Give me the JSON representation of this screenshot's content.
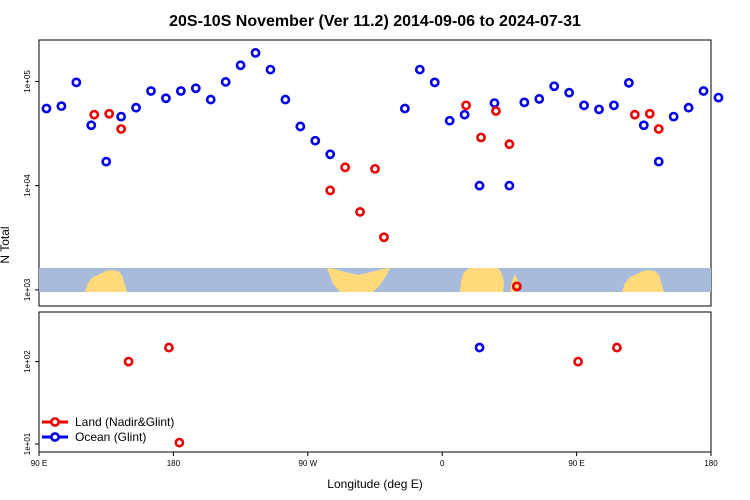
{
  "chart_data": {
    "type": "scatter",
    "title": "20S-10S November (Ver 11.2)   2014-09-06 to 2024-07-31",
    "xlabel": "Longitude (deg E)",
    "ylabel": "N Total",
    "x_ticks": [
      {
        "lon": -90,
        "label": "90 E"
      },
      {
        "lon": 0,
        "label": "180"
      },
      {
        "lon": 90,
        "label": "90 W"
      },
      {
        "lon": 180,
        "label": "0"
      },
      {
        "lon": 270,
        "label": "90 E"
      },
      {
        "lon": 360,
        "label": "180"
      }
    ],
    "x_range": [
      -90,
      360
    ],
    "upper_panel": {
      "scale": "log",
      "ylim": [
        700,
        250000
      ],
      "y_ticks": [
        {
          "value": 1000,
          "label": "1e+03"
        },
        {
          "value": 10000,
          "label": "1e+04"
        },
        {
          "value": 100000,
          "label": "1e+05"
        }
      ]
    },
    "lower_panel": {
      "scale": "log",
      "ylim": [
        8,
        400
      ],
      "y_ticks": [
        {
          "value": 10,
          "label": "1e+01"
        },
        {
          "value": 100,
          "label": "1e+02"
        }
      ]
    },
    "series": [
      {
        "name": "Ocean (Glint)",
        "color": "#0000ee",
        "points": [
          {
            "x": -85,
            "y": 55000
          },
          {
            "x": -75,
            "y": 58000
          },
          {
            "x": -65,
            "y": 98000
          },
          {
            "x": -55,
            "y": 38000
          },
          {
            "x": -45,
            "y": 17000
          },
          {
            "x": -35,
            "y": 46000
          },
          {
            "x": -25,
            "y": 56000
          },
          {
            "x": -15,
            "y": 81000
          },
          {
            "x": -5,
            "y": 69000
          },
          {
            "x": 5,
            "y": 81000
          },
          {
            "x": 15,
            "y": 86000
          },
          {
            "x": 25,
            "y": 67000
          },
          {
            "x": 35,
            "y": 99000
          },
          {
            "x": 45,
            "y": 143000
          },
          {
            "x": 55,
            "y": 188000
          },
          {
            "x": 65,
            "y": 130000
          },
          {
            "x": 75,
            "y": 67000
          },
          {
            "x": 85,
            "y": 37000
          },
          {
            "x": 95,
            "y": 27000
          },
          {
            "x": 105,
            "y": 20000
          },
          {
            "x": 155,
            "y": 55000
          },
          {
            "x": 165,
            "y": 130000
          },
          {
            "x": 175,
            "y": 98000
          },
          {
            "x": 185,
            "y": 42000
          },
          {
            "x": 195,
            "y": 48000
          },
          {
            "x": 205,
            "y": 10000
          },
          {
            "x": 215,
            "y": 62000
          },
          {
            "x": 225,
            "y": 10000
          },
          {
            "x": 235,
            "y": 63000
          },
          {
            "x": 245,
            "y": 68000
          },
          {
            "x": 255,
            "y": 90000
          },
          {
            "x": 265,
            "y": 78000
          },
          {
            "x": 275,
            "y": 59000
          },
          {
            "x": 285,
            "y": 54000
          },
          {
            "x": 295,
            "y": 59000
          },
          {
            "x": 305,
            "y": 97000
          },
          {
            "x": 315,
            "y": 38000
          },
          {
            "x": 325,
            "y": 17000
          },
          {
            "x": 335,
            "y": 46000
          },
          {
            "x": 345,
            "y": 56000
          },
          {
            "x": 355,
            "y": 81000
          },
          {
            "x": 365,
            "y": 70000
          }
        ]
      },
      {
        "name": "Land (Nadir&Glint)",
        "color": "#ee0000",
        "points": [
          {
            "x": -53,
            "y": 48000
          },
          {
            "x": -43,
            "y": 49000
          },
          {
            "x": -35,
            "y": 35000
          },
          {
            "x": 105,
            "y": 9000
          },
          {
            "x": 115,
            "y": 15000
          },
          {
            "x": 125,
            "y": 5600
          },
          {
            "x": 135,
            "y": 14500
          },
          {
            "x": 141,
            "y": 3200
          },
          {
            "x": 196,
            "y": 59000
          },
          {
            "x": 206,
            "y": 29000
          },
          {
            "x": 216,
            "y": 52000
          },
          {
            "x": 225,
            "y": 25000
          },
          {
            "x": 230,
            "y": 1080
          },
          {
            "x": 309,
            "y": 48000
          },
          {
            "x": 319,
            "y": 49000
          },
          {
            "x": 325,
            "y": 35000
          }
        ],
        "lower_points": [
          {
            "x": -30,
            "y": 100
          },
          {
            "x": -3,
            "y": 148
          },
          {
            "x": 4,
            "y": 10.4
          },
          {
            "x": 271,
            "y": 100
          },
          {
            "x": 297,
            "y": 148
          }
        ]
      },
      {
        "name": "Ocean (Glint)",
        "color": "#0000ee",
        "lower_only": true,
        "lower_points": [
          {
            "x": 205,
            "y": 148
          }
        ]
      }
    ],
    "legend": {
      "placement": "bottom-left",
      "entries": [
        {
          "label": "Land (Nadir&Glint)",
          "color": "#ee0000"
        },
        {
          "label": "Ocean (Glint)",
          "color": "#0000ee"
        }
      ]
    },
    "map_colors": {
      "ocean": "#a7bcdc",
      "land": "#ffd97a"
    }
  }
}
